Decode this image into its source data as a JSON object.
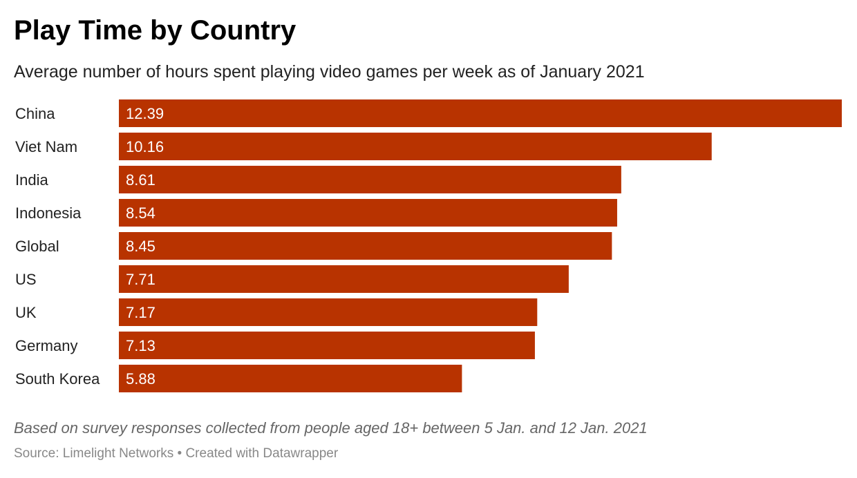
{
  "chart_data": {
    "type": "bar",
    "orientation": "horizontal",
    "title": "Play Time by Country",
    "subtitle": "Average number of hours spent playing video games per week as of January 2021",
    "categories": [
      "China",
      "Viet Nam",
      "India",
      "Indonesia",
      "Global",
      "US",
      "UK",
      "Germany",
      "South Korea"
    ],
    "values": [
      12.39,
      10.16,
      8.61,
      8.54,
      8.45,
      7.71,
      7.17,
      7.13,
      5.88
    ],
    "value_labels": [
      "12.39",
      "10.16",
      "8.61",
      "8.54",
      "8.45",
      "7.71",
      "7.17",
      "7.13",
      "5.88"
    ],
    "color": "#b83300",
    "grid": false,
    "xlim": [
      0,
      12.39
    ]
  },
  "notes": "Based on survey responses collected from people aged 18+ between 5 Jan. and 12 Jan. 2021",
  "source": "Source: Limelight Networks • Created with Datawrapper"
}
